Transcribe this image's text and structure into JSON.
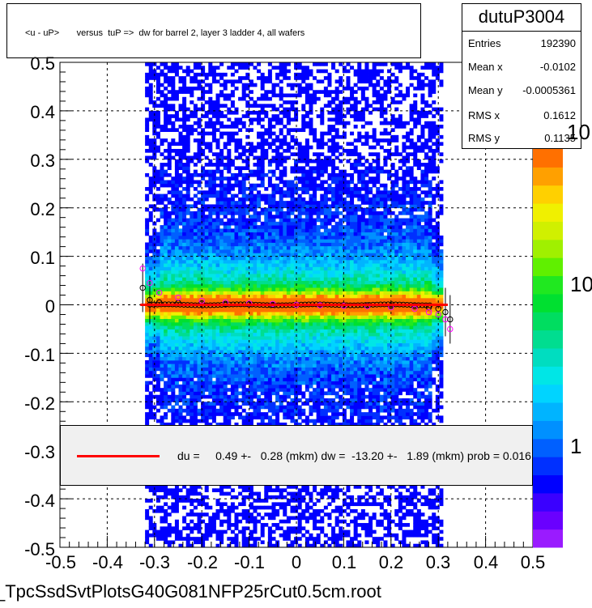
{
  "title": "<u - uP>       versus  tuP =>  dw for barrel 2, layer 3 ladder 4, all wafers",
  "stats": {
    "name": "dutuP3004",
    "rows": [
      {
        "label": "Entries",
        "value": "192390"
      },
      {
        "label": "Mean x",
        "value": "-0.0102"
      },
      {
        "label": "Mean y",
        "value": "-0.0005361"
      },
      {
        "label": "RMS x",
        "value": "0.1612"
      },
      {
        "label": "RMS y",
        "value": "0.1135"
      }
    ]
  },
  "fit_text": "du =     0.49 +-   0.28 (mkm) dw =  -13.20 +-   1.89 (mkm) prob = 0.016",
  "file_label": "_TpcSsdSvtPlotsG40G081NFP25rCut0.5cm.root",
  "chart_data": {
    "type": "heatmap",
    "xlim": [
      -0.5,
      0.5
    ],
    "ylim": [
      -0.5,
      0.5
    ],
    "x_ticks": [
      "-0.5",
      "-0.4",
      "-0.3",
      "-0.2",
      "-0.1",
      "0",
      "0.1",
      "0.2",
      "0.3",
      "0.4",
      "0.5"
    ],
    "y_ticks": [
      "-0.5",
      "-0.4",
      "-0.3",
      "-0.2",
      "-0.1",
      "0",
      "0.1",
      "0.2",
      "0.3",
      "0.4",
      "0.5"
    ],
    "z_labels": [
      "1",
      "10",
      "10"
    ],
    "grid": true,
    "data_x_range": [
      -0.32,
      0.31
    ],
    "profile_points": {
      "x": [
        -0.325,
        -0.31,
        -0.29,
        -0.25,
        -0.2,
        -0.15,
        -0.1,
        -0.05,
        0,
        0.05,
        0.1,
        0.15,
        0.2,
        0.25,
        0.28,
        0.3,
        0.315,
        0.325
      ],
      "mean": [
        0.035,
        0.01,
        0.005,
        0.004,
        0.003,
        0.002,
        0.001,
        0.0,
        0.0,
        0.0,
        -0.001,
        -0.001,
        -0.002,
        -0.003,
        -0.005,
        -0.008,
        -0.015,
        -0.03
      ],
      "mean2": [
        0.075,
        0.045,
        0.025,
        0.015,
        0.008,
        0.005,
        0.003,
        0.002,
        0.0,
        -0.001,
        -0.002,
        -0.003,
        -0.005,
        -0.008,
        -0.015,
        -0.02,
        -0.03,
        -0.05
      ]
    },
    "fit_line": {
      "color": "#ff0000",
      "x": [
        -0.33,
        0.32
      ],
      "y": [
        0.0,
        0.0
      ]
    }
  }
}
